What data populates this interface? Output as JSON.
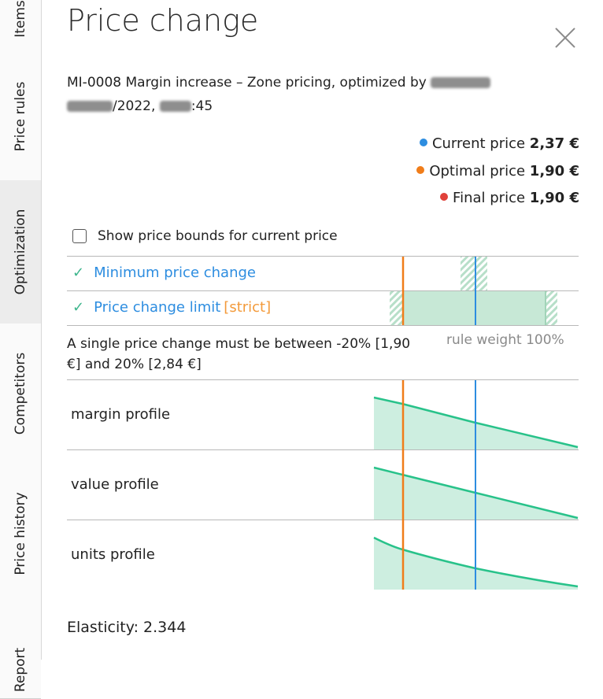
{
  "sidebar": {
    "tabs": [
      {
        "name": "sidebar-tab-items",
        "label": "Items",
        "active": false
      },
      {
        "name": "sidebar-tab-price-rules",
        "label": "Price rules",
        "active": false
      },
      {
        "name": "sidebar-tab-optimization",
        "label": "Optimization",
        "active": true
      },
      {
        "name": "sidebar-tab-competitors",
        "label": "Competitors",
        "active": false
      },
      {
        "name": "sidebar-tab-price-history",
        "label": "Price history",
        "active": false
      },
      {
        "name": "sidebar-tab-report",
        "label": "Report",
        "active": false
      }
    ]
  },
  "panel": {
    "title": "Price change",
    "subtitle_line1": "MI-0008 Margin increase – Zone pricing, optimized by",
    "subtitle_date_suffix": "/2022,",
    "subtitle_time_suffix": ":45"
  },
  "legend": {
    "current": {
      "label": "Current price",
      "value": "2,37 €",
      "color": "#2d8de0"
    },
    "optimal": {
      "label": "Optimal price",
      "value": "1,90 €",
      "color": "#f07d1a"
    },
    "final": {
      "label": "Final price",
      "value": "1,90 €",
      "color": "#e0413a"
    }
  },
  "show_bounds": {
    "label": "Show price bounds for current price",
    "checked": false
  },
  "rules": [
    {
      "label": "Minimum price change",
      "tag": ""
    },
    {
      "label": "Price change limit",
      "tag": "[strict]"
    }
  ],
  "rule_description": "A single price change must be between -20% [1,90 €] and 20% [2,84 €]",
  "rule_weight": "rule weight 100%",
  "profiles": [
    {
      "label": "margin profile"
    },
    {
      "label": "value profile"
    },
    {
      "label": "units profile"
    }
  ],
  "elasticity": "Elasticity: 2.344",
  "colors": {
    "fill": "#cdeee0",
    "curve": "#28c28a",
    "band": "#c7e8d6"
  }
}
